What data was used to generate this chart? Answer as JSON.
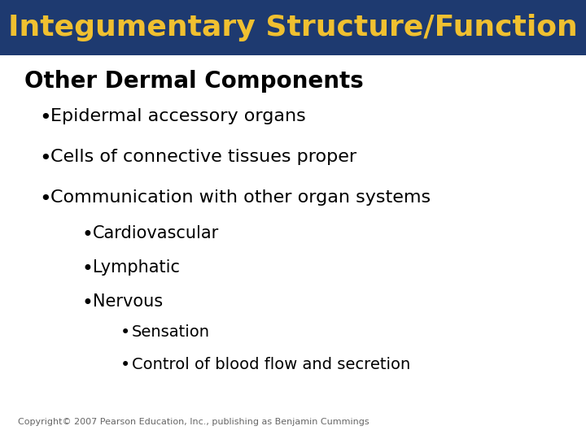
{
  "title": "Integumentary Structure/Function",
  "title_bg_color": "#1e3a70",
  "title_text_color": "#f0c030",
  "body_bg_color": "#ffffff",
  "copyright": "Copyright© 2007 Pearson Education, Inc., publishing as Benjamin Cummings",
  "heading": "Other Dermal Components",
  "heading_color": "#000000",
  "heading_fontsize": 20,
  "title_fontsize": 26,
  "bullet1_items": [
    "Epidermal accessory organs",
    "Cells of connective tissues proper",
    "Communication with other organ systems"
  ],
  "bullet2_items": [
    "Cardiovascular",
    "Lymphatic",
    "Nervous"
  ],
  "bullet3_items": [
    "Sensation",
    "Control of blood flow and secretion"
  ],
  "body_fontsize": 16,
  "sub_fontsize": 15,
  "subsub_fontsize": 14,
  "copyright_fontsize": 8
}
